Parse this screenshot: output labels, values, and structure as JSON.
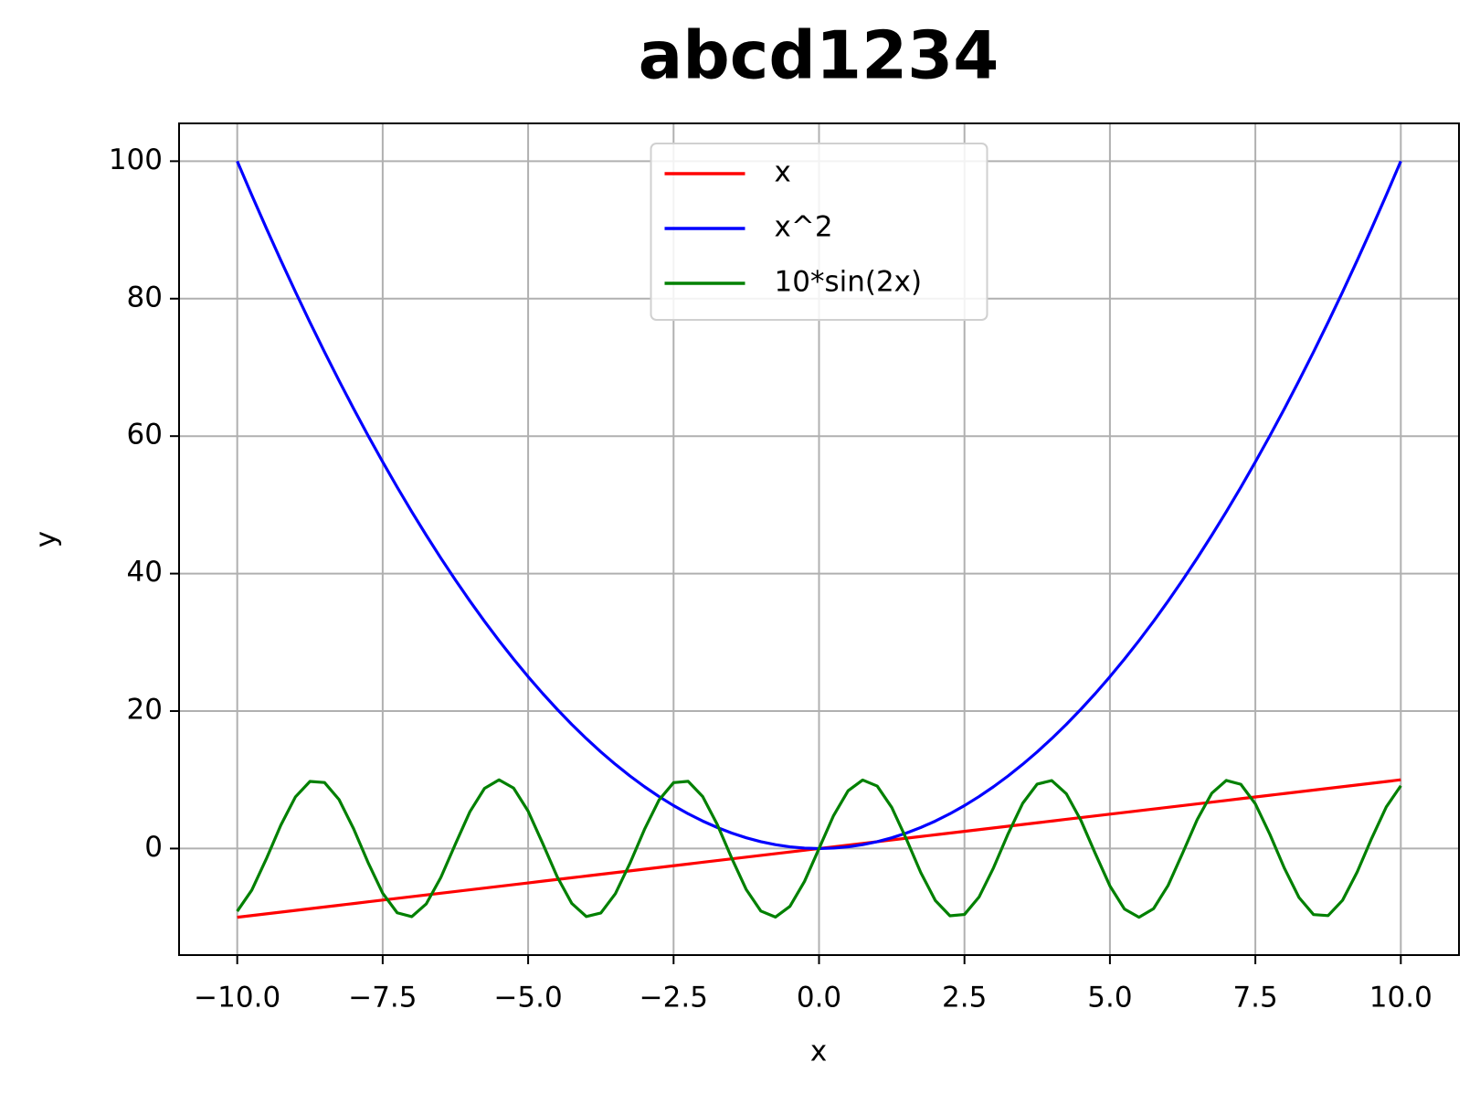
{
  "chart_data": {
    "type": "line",
    "title": "abcd1234",
    "x_label": "x",
    "y_label": "y",
    "x": [
      -10,
      -9.75,
      -9.5,
      -9.25,
      -9,
      -8.75,
      -8.5,
      -8.25,
      -8,
      -7.75,
      -7.5,
      -7.25,
      -7,
      -6.75,
      -6.5,
      -6.25,
      -6,
      -5.75,
      -5.5,
      -5.25,
      -5,
      -4.75,
      -4.5,
      -4.25,
      -4,
      -3.75,
      -3.5,
      -3.25,
      -3,
      -2.75,
      -2.5,
      -2.25,
      -2,
      -1.75,
      -1.5,
      -1.25,
      -1,
      -0.75,
      -0.5,
      -0.25,
      0,
      0.25,
      0.5,
      0.75,
      1,
      1.25,
      1.5,
      1.75,
      2,
      2.25,
      2.5,
      2.75,
      3,
      3.25,
      3.5,
      3.75,
      4,
      4.25,
      4.5,
      4.75,
      5,
      5.25,
      5.5,
      5.75,
      6,
      6.25,
      6.5,
      6.75,
      7,
      7.25,
      7.5,
      7.75,
      8,
      8.25,
      8.5,
      8.75,
      9,
      9.25,
      9.5,
      9.75,
      10
    ],
    "series": [
      {
        "name": "x",
        "color": "#ff0000",
        "values": [
          -10,
          -9.75,
          -9.5,
          -9.25,
          -9,
          -8.75,
          -8.5,
          -8.25,
          -8,
          -7.75,
          -7.5,
          -7.25,
          -7,
          -6.75,
          -6.5,
          -6.25,
          -6,
          -5.75,
          -5.5,
          -5.25,
          -5,
          -4.75,
          -4.5,
          -4.25,
          -4,
          -3.75,
          -3.5,
          -3.25,
          -3,
          -2.75,
          -2.5,
          -2.25,
          -2,
          -1.75,
          -1.5,
          -1.25,
          -1,
          -0.75,
          -0.5,
          -0.25,
          0,
          0.25,
          0.5,
          0.75,
          1,
          1.25,
          1.5,
          1.75,
          2,
          2.25,
          2.5,
          2.75,
          3,
          3.25,
          3.5,
          3.75,
          4,
          4.25,
          4.5,
          4.75,
          5,
          5.25,
          5.5,
          5.75,
          6,
          6.25,
          6.5,
          6.75,
          7,
          7.25,
          7.5,
          7.75,
          8,
          8.25,
          8.5,
          8.75,
          9,
          9.25,
          9.5,
          9.75,
          10
        ]
      },
      {
        "name": "x^2",
        "color": "#0000ff",
        "values": [
          100,
          95.0625,
          90.25,
          85.5625,
          81,
          76.5625,
          72.25,
          68.0625,
          64,
          60.0625,
          56.25,
          52.5625,
          49,
          45.5625,
          42.25,
          39.0625,
          36,
          33.0625,
          30.25,
          27.5625,
          25,
          22.5625,
          20.25,
          18.0625,
          16,
          14.0625,
          12.25,
          10.5625,
          9,
          7.5625,
          6.25,
          5.0625,
          4,
          3.0625,
          2.25,
          1.5625,
          1,
          0.5625,
          0.25,
          0.0625,
          0,
          0.0625,
          0.25,
          0.5625,
          1,
          1.5625,
          2.25,
          3.0625,
          4,
          5.0625,
          6.25,
          7.5625,
          9,
          10.5625,
          12.25,
          14.0625,
          16,
          18.0625,
          20.25,
          22.5625,
          25,
          27.5625,
          30.25,
          33.0625,
          36,
          39.0625,
          42.25,
          45.5625,
          49,
          52.5625,
          56.25,
          60.0625,
          64,
          68.0625,
          72.25,
          76.5625,
          81,
          85.5625,
          90.25,
          95.0625,
          100
        ]
      },
      {
        "name": "10*sin(2x)",
        "color": "#008000",
        "values": [
          -9.13,
          -6.05,
          -1.5,
          3.42,
          7.51,
          9.76,
          9.61,
          7.12,
          2.88,
          -2.06,
          -6.5,
          -9.35,
          -9.91,
          -8.04,
          -4.2,
          0.66,
          5.37,
          8.75,
          10,
          8.8,
          5.44,
          0.75,
          -4.12,
          -7.98,
          -9.89,
          -9.38,
          -6.57,
          -2.15,
          2.79,
          7.06,
          9.59,
          9.78,
          7.57,
          3.51,
          -1.41,
          -5.98,
          -9.09,
          -9.97,
          -8.41,
          -4.79,
          0,
          4.79,
          8.41,
          9.97,
          9.09,
          5.98,
          1.41,
          -3.51,
          -7.57,
          -9.78,
          -9.59,
          -7.06,
          -2.79,
          2.15,
          6.57,
          9.38,
          9.89,
          7.98,
          4.12,
          -0.75,
          -5.44,
          -8.8,
          -10,
          -8.75,
          -5.37,
          -0.66,
          4.2,
          8.04,
          9.91,
          9.35,
          6.5,
          2.06,
          -2.88,
          -7.12,
          -9.61,
          -9.76,
          -7.51,
          -3.42,
          1.5,
          6.05,
          9.13
        ]
      }
    ],
    "xlim": [
      -11,
      11
    ],
    "ylim": [
      -15.5,
      105.5
    ],
    "xticks": [
      {
        "value": -10,
        "label": "−10.0"
      },
      {
        "value": -7.5,
        "label": "−7.5"
      },
      {
        "value": -5,
        "label": "−5.0"
      },
      {
        "value": -2.5,
        "label": "−2.5"
      },
      {
        "value": 0,
        "label": "0.0"
      },
      {
        "value": 2.5,
        "label": "2.5"
      },
      {
        "value": 5,
        "label": "5.0"
      },
      {
        "value": 7.5,
        "label": "7.5"
      },
      {
        "value": 10,
        "label": "10.0"
      }
    ],
    "yticks": [
      0,
      20,
      40,
      60,
      80,
      100
    ],
    "grid": true,
    "legend": "upper center"
  }
}
